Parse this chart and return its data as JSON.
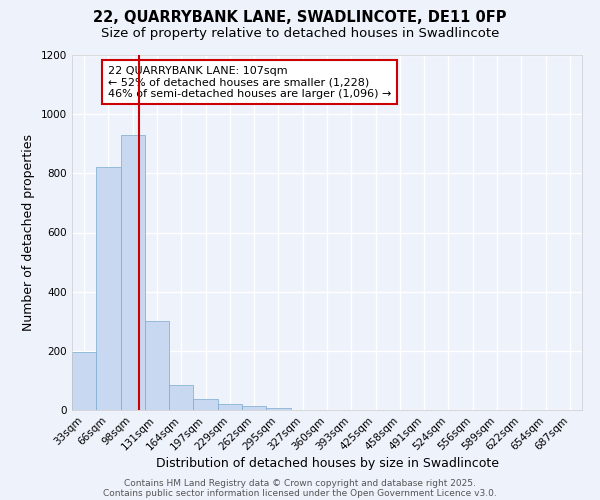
{
  "title_line1": "22, QUARRYBANK LANE, SWADLINCOTE, DE11 0FP",
  "title_line2": "Size of property relative to detached houses in Swadlincote",
  "xlabel": "Distribution of detached houses by size in Swadlincote",
  "ylabel": "Number of detached properties",
  "categories": [
    "33sqm",
    "66sqm",
    "98sqm",
    "131sqm",
    "164sqm",
    "197sqm",
    "229sqm",
    "262sqm",
    "295sqm",
    "327sqm",
    "360sqm",
    "393sqm",
    "425sqm",
    "458sqm",
    "491sqm",
    "524sqm",
    "556sqm",
    "589sqm",
    "622sqm",
    "654sqm",
    "687sqm"
  ],
  "values": [
    197,
    820,
    930,
    300,
    85,
    37,
    20,
    13,
    8,
    0,
    0,
    0,
    0,
    0,
    0,
    0,
    0,
    0,
    0,
    0,
    0
  ],
  "bar_color": "#c8d8f0",
  "bar_edge_color": "#7aaad0",
  "ylim": [
    0,
    1200
  ],
  "yticks": [
    0,
    200,
    400,
    600,
    800,
    1000,
    1200
  ],
  "property_line_color": "#cc0000",
  "annotation_text": "22 QUARRYBANK LANE: 107sqm\n← 52% of detached houses are smaller (1,228)\n46% of semi-detached houses are larger (1,096) →",
  "annotation_box_color": "#ffffff",
  "annotation_box_edge_color": "#cc0000",
  "footer_line1": "Contains HM Land Registry data © Crown copyright and database right 2025.",
  "footer_line2": "Contains public sector information licensed under the Open Government Licence v3.0.",
  "background_color": "#eef2fb",
  "grid_color": "#ffffff",
  "title_fontsize": 10.5,
  "subtitle_fontsize": 9.5,
  "axis_label_fontsize": 9,
  "tick_fontsize": 7.5,
  "footer_fontsize": 6.5,
  "annotation_fontsize": 8
}
